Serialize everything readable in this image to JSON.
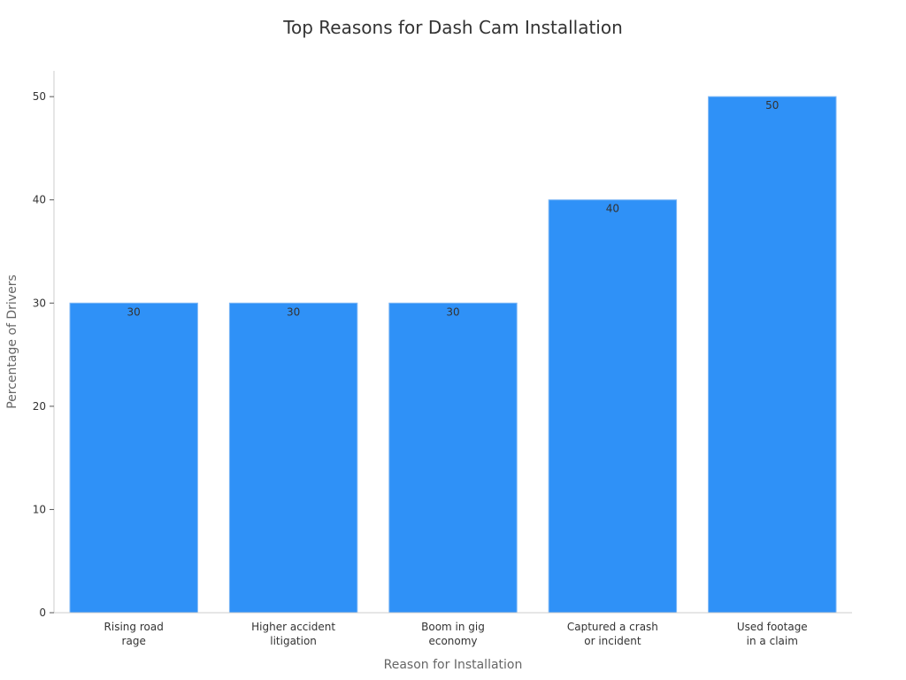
{
  "chart_data": {
    "type": "bar",
    "title": "Top Reasons for Dash Cam Installation",
    "xlabel": "Reason for Installation",
    "ylabel": "Percentage of Drivers",
    "categories": [
      [
        "Rising road",
        "rage"
      ],
      [
        "Higher accident",
        "litigation"
      ],
      [
        "Boom in gig",
        "economy"
      ],
      [
        "Captured a crash",
        "or incident"
      ],
      [
        "Used footage",
        "in a claim"
      ]
    ],
    "values": [
      30,
      30,
      30,
      40,
      50
    ],
    "yticks": [
      0,
      10,
      20,
      30,
      40,
      50
    ],
    "ylim": [
      0,
      52.5
    ],
    "bar_color": "#2f91f7",
    "grid": false,
    "legend": "none"
  }
}
